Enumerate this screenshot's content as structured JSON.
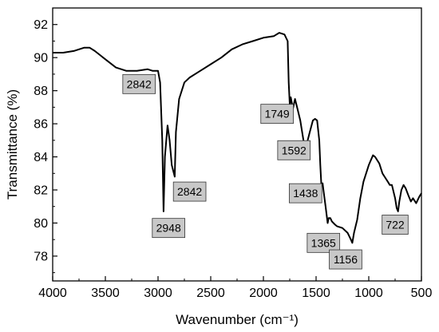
{
  "chart_data": {
    "type": "line",
    "title": "",
    "xlabel": "Wavenumber (cm⁻¹)",
    "ylabel": "Transmittance (%)",
    "xlim": [
      4000,
      500
    ],
    "ylim": [
      76.5,
      93
    ],
    "x_reversed": true,
    "x_ticks": [
      4000,
      3500,
      3000,
      2500,
      2000,
      1500,
      1000,
      500
    ],
    "y_ticks": [
      78,
      80,
      82,
      84,
      86,
      88,
      90,
      92
    ],
    "grid": false,
    "legend": "none",
    "line_color": "#000000",
    "annotation_fill": "#c8c8c8",
    "series": [
      {
        "x": [
          4000,
          3900,
          3800,
          3700,
          3650,
          3600,
          3500,
          3400,
          3300,
          3200,
          3100,
          3050,
          3000,
          2980,
          2960,
          2948,
          2935,
          2910,
          2890,
          2870,
          2842,
          2830,
          2800,
          2750,
          2700,
          2600,
          2500,
          2400,
          2300,
          2200,
          2100,
          2000,
          1900,
          1850,
          1800,
          1770,
          1760,
          1749,
          1740,
          1720,
          1700,
          1680,
          1650,
          1620,
          1600,
          1592,
          1560,
          1530,
          1510,
          1490,
          1470,
          1460,
          1450,
          1438,
          1430,
          1410,
          1390,
          1380,
          1365,
          1350,
          1320,
          1300,
          1250,
          1200,
          1170,
          1156,
          1140,
          1110,
          1080,
          1050,
          1000,
          960,
          940,
          900,
          870,
          850,
          820,
          800,
          780,
          750,
          735,
          722,
          710,
          690,
          670,
          650,
          620,
          600,
          580,
          550,
          520,
          500
        ],
        "values": [
          90.3,
          90.3,
          90.4,
          90.6,
          90.6,
          90.4,
          89.9,
          89.4,
          89.2,
          89.2,
          89.3,
          89.2,
          89.2,
          88.5,
          85.0,
          80.7,
          84.0,
          85.9,
          85.0,
          83.5,
          82.8,
          85.5,
          87.5,
          88.5,
          88.8,
          89.2,
          89.6,
          90.0,
          90.5,
          90.8,
          91.0,
          91.2,
          91.3,
          91.5,
          91.4,
          91.0,
          88.5,
          87.1,
          87.6,
          86.9,
          87.5,
          87.0,
          86.2,
          85.0,
          84.6,
          84.7,
          85.5,
          86.2,
          86.3,
          86.2,
          85.0,
          83.5,
          82.3,
          82.4,
          82.0,
          81.0,
          80.0,
          80.3,
          80.3,
          80.1,
          79.9,
          79.8,
          79.7,
          79.4,
          79.0,
          78.8,
          79.4,
          80.2,
          81.5,
          82.5,
          83.5,
          84.1,
          84.0,
          83.6,
          83.0,
          82.8,
          82.5,
          82.3,
          82.3,
          81.5,
          80.9,
          80.7,
          81.3,
          82.0,
          82.3,
          82.1,
          81.6,
          81.3,
          81.5,
          81.2,
          81.6,
          81.8
        ]
      }
    ],
    "annotations": [
      {
        "text": "2842",
        "x": 3180,
        "y": 88.4
      },
      {
        "text": "2948",
        "x": 2900,
        "y": 79.7
      },
      {
        "text": "2842",
        "x": 2700,
        "y": 81.9
      },
      {
        "text": "1749",
        "x": 1870,
        "y": 86.6
      },
      {
        "text": "1592",
        "x": 1710,
        "y": 84.4
      },
      {
        "text": "1438",
        "x": 1600,
        "y": 81.8
      },
      {
        "text": "1365",
        "x": 1430,
        "y": 78.8
      },
      {
        "text": "1156",
        "x": 1220,
        "y": 77.8
      },
      {
        "text": "722",
        "x": 750,
        "y": 79.9
      }
    ]
  }
}
